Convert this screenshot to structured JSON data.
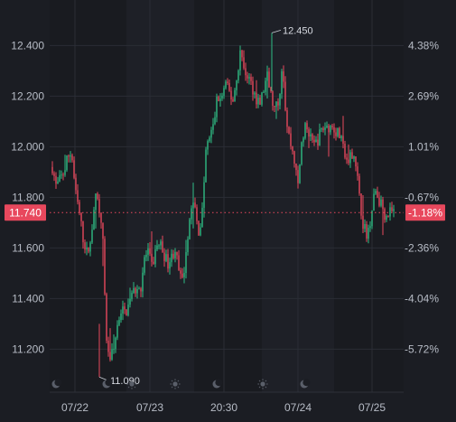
{
  "chart_data": {
    "type": "candlestick",
    "x_tick_labels": [
      "07/22",
      "07/23",
      "20:30",
      "07/24",
      "07/25"
    ],
    "y_left_ticks": [
      {
        "value": 12.4,
        "label": "12.400"
      },
      {
        "value": 12.2,
        "label": "12.200"
      },
      {
        "value": 12.0,
        "label": "12.000"
      },
      {
        "value": 11.8,
        "label": "11.800"
      },
      {
        "value": 11.6,
        "label": "11.600"
      },
      {
        "value": 11.4,
        "label": "11.400"
      },
      {
        "value": 11.2,
        "label": "11.200"
      }
    ],
    "y_right_ticks": [
      {
        "value": 12.4,
        "label": "4.38%"
      },
      {
        "value": 12.2,
        "label": "2.69%"
      },
      {
        "value": 12.0,
        "label": "1.01%"
      },
      {
        "value": 11.8,
        "label": "-0.67%"
      },
      {
        "value": 11.6,
        "label": "-2.36%"
      },
      {
        "value": 11.4,
        "label": "-4.04%"
      },
      {
        "value": 11.2,
        "label": "-5.72%"
      }
    ],
    "ylim": [
      11.03,
      12.53
    ],
    "current_price": {
      "value": 11.74,
      "label": "11.740",
      "change_label": "-1.18%"
    },
    "high_marker": {
      "value": 12.45,
      "label": "12.450"
    },
    "low_marker": {
      "value": 11.09,
      "label": "11.090"
    },
    "close_path": [
      11.92,
      11.84,
      11.87,
      11.9,
      11.96,
      11.98,
      11.82,
      11.74,
      11.64,
      11.58,
      11.62,
      11.8,
      11.78,
      11.7,
      11.25,
      11.16,
      11.2,
      11.3,
      11.36,
      11.34,
      11.38,
      11.42,
      11.45,
      11.44,
      11.56,
      11.58,
      11.52,
      11.6,
      11.62,
      11.58,
      11.54,
      11.56,
      11.6,
      11.5,
      11.46,
      11.62,
      11.74,
      11.78,
      11.66,
      11.72,
      11.98,
      12.04,
      12.08,
      12.2,
      12.18,
      12.25,
      12.22,
      12.18,
      12.26,
      12.38,
      12.3,
      12.28,
      12.24,
      12.2,
      12.16,
      12.22,
      12.28,
      12.2,
      12.14,
      12.18,
      12.34,
      12.1,
      12.02,
      11.96,
      11.84,
      12.02,
      12.08,
      12.04,
      12.0,
      12.02,
      12.06,
      12.08,
      12.08,
      12.08,
      12.06,
      12.04,
      11.98,
      11.92,
      11.98,
      11.96,
      11.8,
      11.7,
      11.64,
      11.72,
      11.84,
      11.8,
      11.76,
      11.72,
      11.74,
      11.74
    ],
    "grid": true,
    "session_markers": [
      "moon",
      "moon",
      "sun",
      "sun",
      "moon",
      "sun",
      "moon"
    ]
  }
}
